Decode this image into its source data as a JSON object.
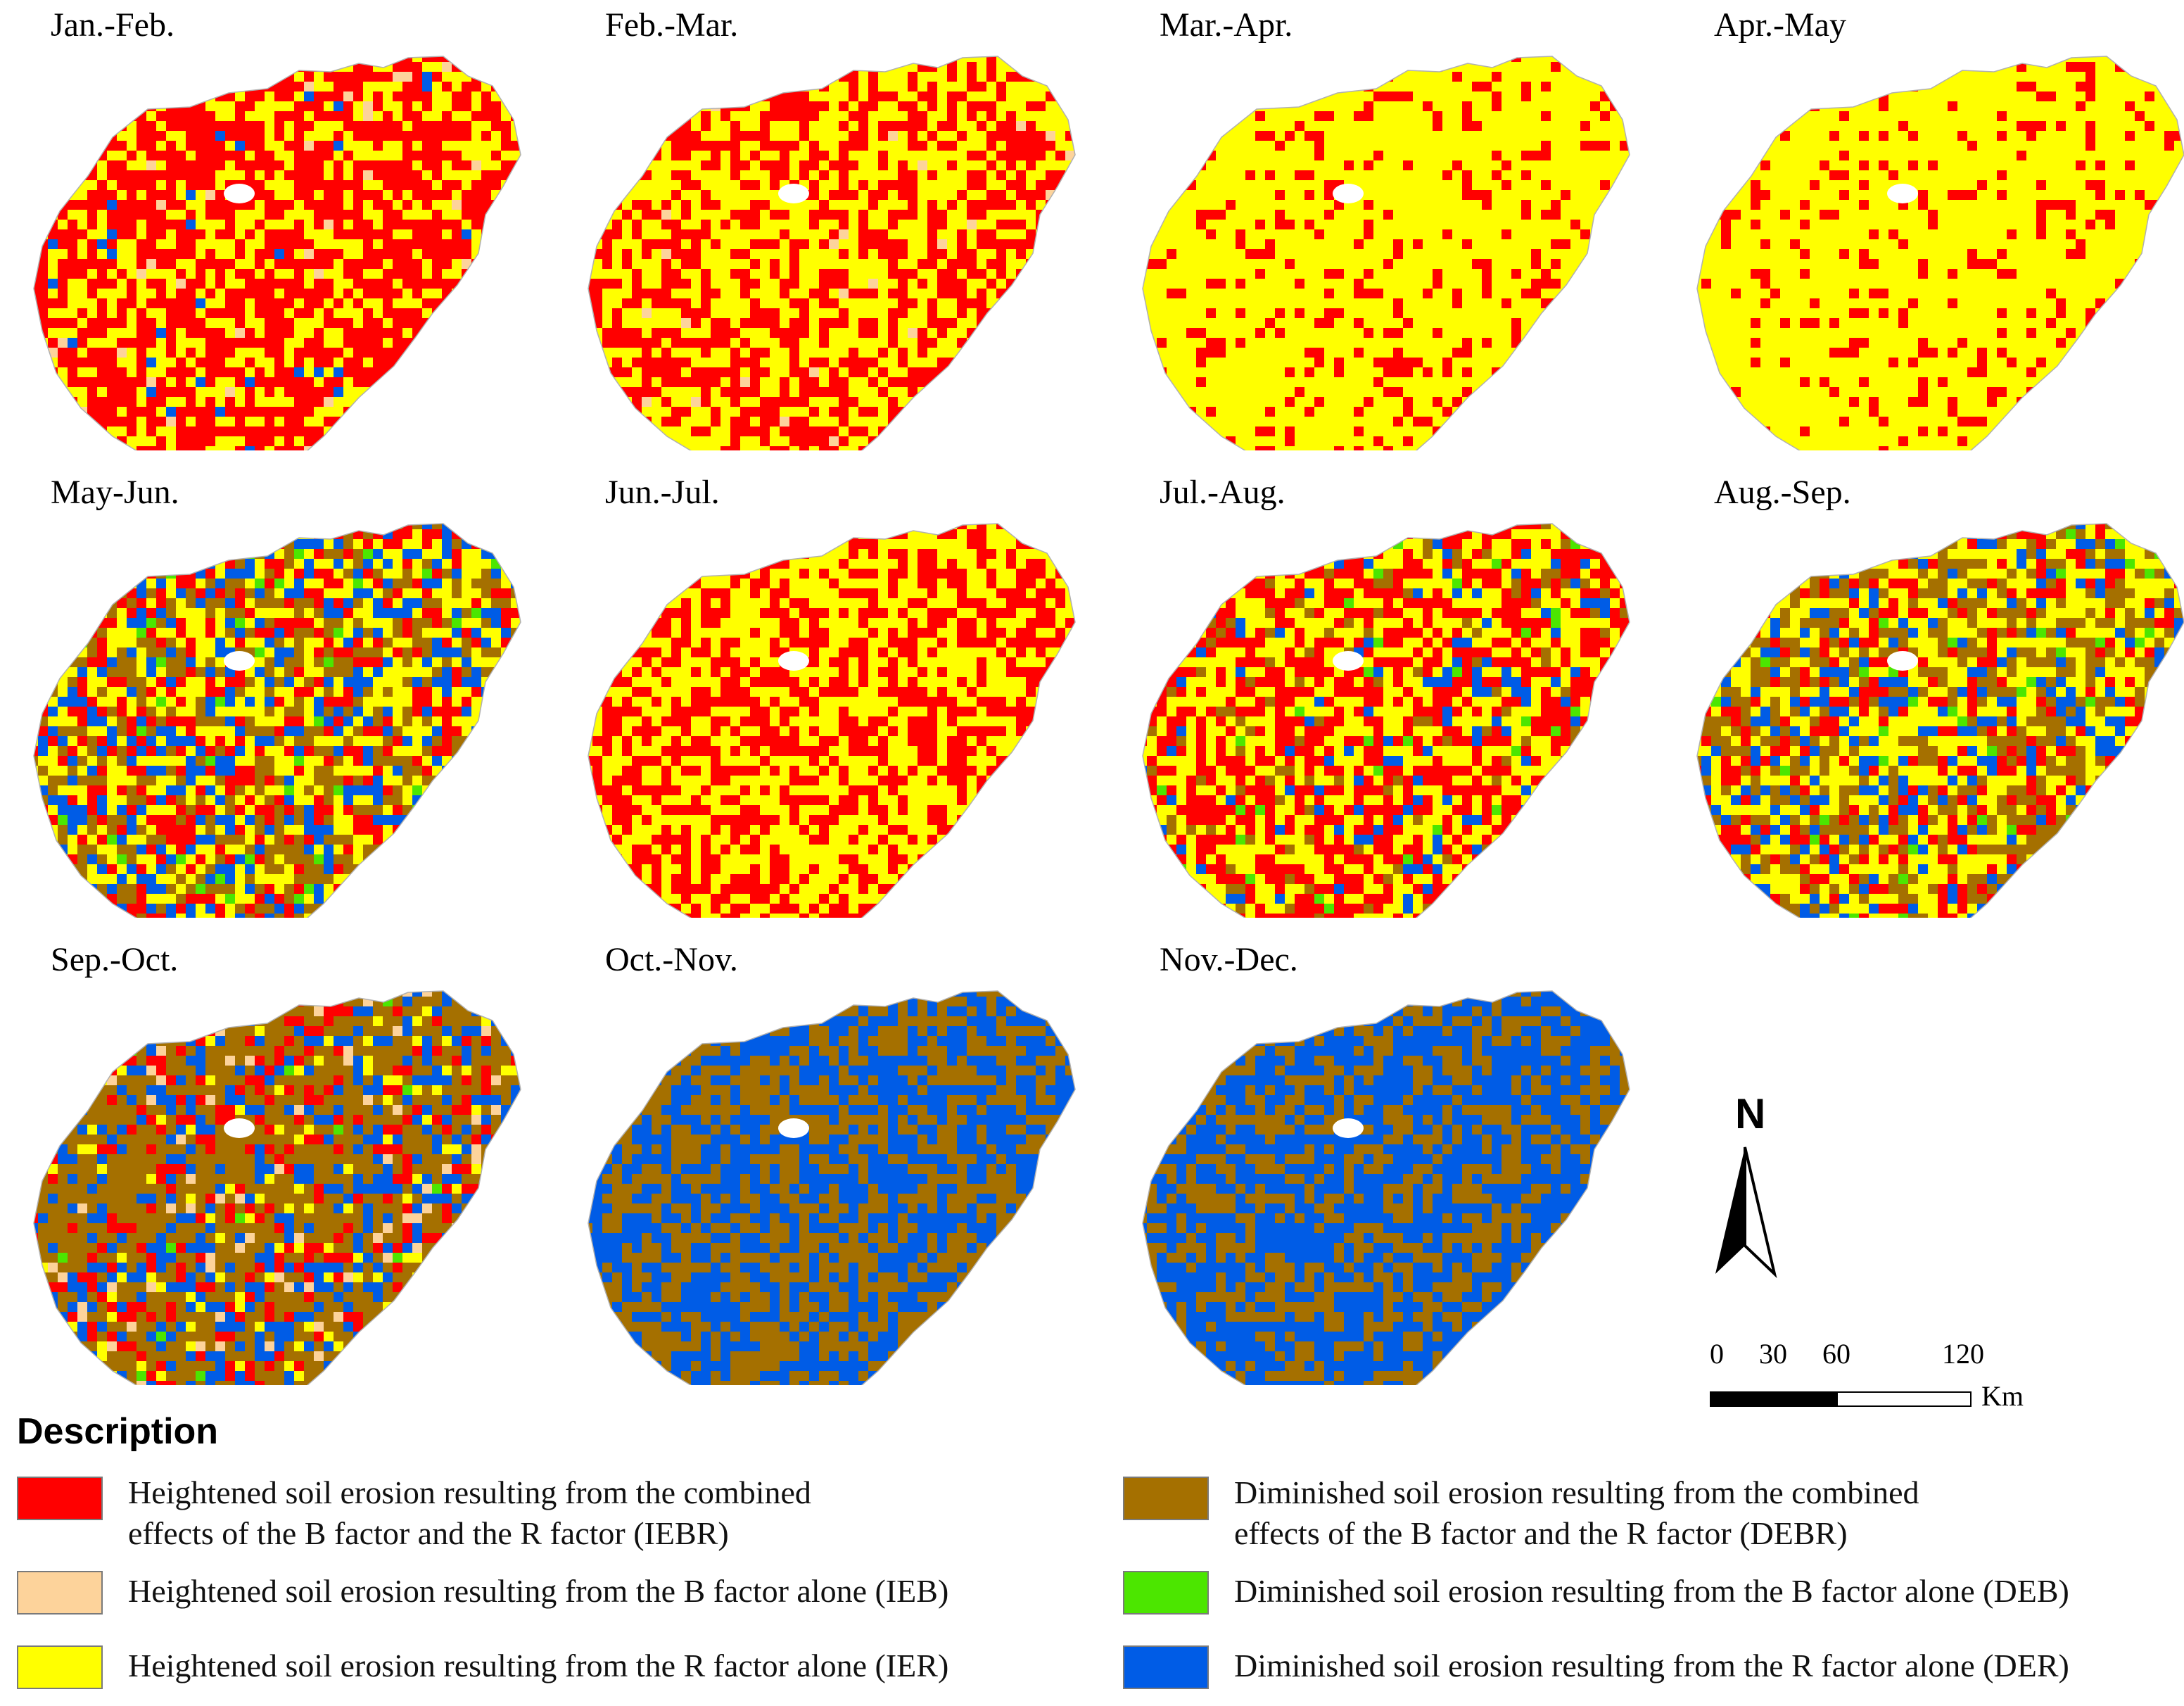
{
  "panels": [
    {
      "title": "Jan.-Feb.",
      "mix": {
        "IEBR": 0.62,
        "IER": 0.34,
        "IEB": 0.02,
        "DER": 0.02
      }
    },
    {
      "title": "Feb.-Mar.",
      "mix": {
        "IEBR": 0.48,
        "IER": 0.5,
        "IEB": 0.02
      }
    },
    {
      "title": "Mar.-Apr.",
      "mix": {
        "IER": 0.8,
        "IEBR": 0.2
      }
    },
    {
      "title": "Apr.-May",
      "mix": {
        "IER": 0.84,
        "IEBR": 0.16
      }
    },
    {
      "title": "May-Jun.",
      "mix": {
        "IER": 0.3,
        "IEBR": 0.22,
        "DEBR": 0.26,
        "DER": 0.19,
        "DEB": 0.03
      }
    },
    {
      "title": "Jun.-Jul.",
      "mix": {
        "IEBR": 0.46,
        "IER": 0.54
      }
    },
    {
      "title": "Jul.-Aug.",
      "mix": {
        "IEBR": 0.44,
        "IER": 0.4,
        "DEBR": 0.07,
        "DER": 0.07,
        "DEB": 0.02
      }
    },
    {
      "title": "Aug.-Sep.",
      "mix": {
        "DEBR": 0.3,
        "DER": 0.15,
        "IER": 0.36,
        "IEBR": 0.17,
        "DEB": 0.02
      }
    },
    {
      "title": "Sep.-Oct.",
      "mix": {
        "DEBR": 0.5,
        "DER": 0.22,
        "IEBR": 0.14,
        "IER": 0.08,
        "IEB": 0.05,
        "DEB": 0.01
      }
    },
    {
      "title": "Oct.-Nov.",
      "mix": {
        "DEBR": 0.5,
        "DER": 0.5
      }
    },
    {
      "title": "Nov.-Dec.",
      "mix": {
        "DER": 0.56,
        "DEBR": 0.44
      }
    }
  ],
  "north_arrow": {
    "label": "N"
  },
  "scale_bar": {
    "ticks": [
      "0",
      "30",
      "60",
      "120"
    ],
    "unit": "Km"
  },
  "legend": {
    "title": "Description",
    "items": [
      {
        "code": "IEBR",
        "color": "#ff0000",
        "label_line1": "Heightened soil erosion resulting from the combined",
        "label_line2": "effects of the B factor and the R factor (IEBR)"
      },
      {
        "code": "IEB",
        "color": "#fdd39b",
        "label_line1": "Heightened soil erosion resulting from the B factor alone (IEB)",
        "label_line2": ""
      },
      {
        "code": "IER",
        "color": "#ffff00",
        "label_line1": "Heightened soil erosion resulting from the R factor alone (IER)",
        "label_line2": ""
      },
      {
        "code": "DEBR",
        "color": "#a57000",
        "label_line1": "Diminished soil erosion resulting from the combined",
        "label_line2": "effects of the B factor and the R factor (DEBR)"
      },
      {
        "code": "DEB",
        "color": "#4ce600",
        "label_line1": "Diminished soil erosion resulting from the B factor alone (DEB)",
        "label_line2": ""
      },
      {
        "code": "DER",
        "color": "#005ce6",
        "label_line1": "Diminished soil erosion resulting from the R factor alone (DER)",
        "label_line2": ""
      }
    ]
  }
}
